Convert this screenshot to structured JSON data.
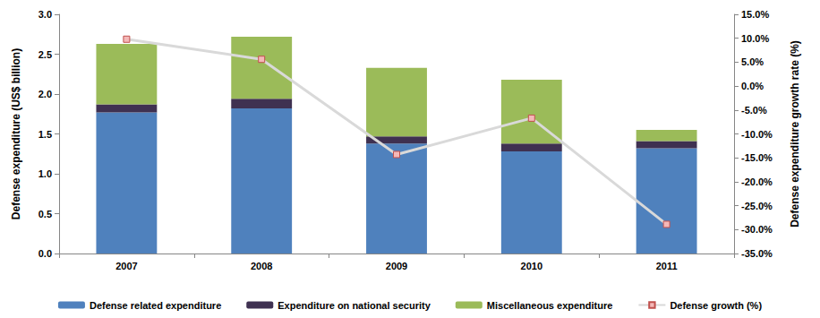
{
  "chart_data": {
    "type": "bar",
    "stacked": true,
    "grid": false,
    "legend": "bottom",
    "categories": [
      "2007",
      "2008",
      "2009",
      "2010",
      "2011"
    ],
    "y_label": "Defense expenditure (US$ billion)",
    "y2_label": "Defense expenditure growth rate (%)",
    "ylim": [
      0,
      3
    ],
    "yticks": [
      {
        "value": 0,
        "label": "0.0"
      },
      0.5,
      {
        "value": 1,
        "label": "1.0"
      },
      1.5,
      {
        "value": 2,
        "label": "2.0"
      },
      2.5,
      {
        "value": 3,
        "label": "3.0"
      }
    ],
    "y2lim": [
      -35,
      15
    ],
    "y2ticks": [
      {
        "value": -35,
        "label": "-35.0%"
      },
      {
        "value": -30,
        "label": "-30.0%"
      },
      {
        "value": -25,
        "label": "-25.0%"
      },
      {
        "value": -20,
        "label": "-20.0%"
      },
      {
        "value": -15,
        "label": "-15.0%"
      },
      {
        "value": -10,
        "label": "-10.0%"
      },
      {
        "value": -5,
        "label": "-5.0%"
      },
      {
        "value": 0,
        "label": "0.0%"
      },
      {
        "value": 5,
        "label": "5.0%"
      },
      {
        "value": 10,
        "label": "10.0%"
      },
      {
        "value": 15,
        "label": "15.0%"
      }
    ],
    "series": [
      {
        "name": "Defense related expenditure",
        "type": "bar",
        "color": "#4f81bd",
        "values": [
          1.77,
          1.82,
          1.38,
          1.28,
          1.32
        ]
      },
      {
        "name": "Expenditure on national security",
        "type": "bar",
        "color": "#3f3151",
        "values": [
          0.1,
          0.12,
          0.09,
          0.1,
          0.09
        ]
      },
      {
        "name": "Miscellaneous expenditure",
        "type": "bar",
        "color": "#9bbb59",
        "values": [
          0.76,
          0.78,
          0.86,
          0.8,
          0.14
        ]
      },
      {
        "name": "Defense growth (%)",
        "type": "line",
        "axis": "y2",
        "color": "#d9d9d9",
        "marker": "square",
        "line_style": "solid",
        "values": [
          9.8,
          5.6,
          -14.3,
          -6.7,
          -28.9
        ]
      }
    ]
  }
}
